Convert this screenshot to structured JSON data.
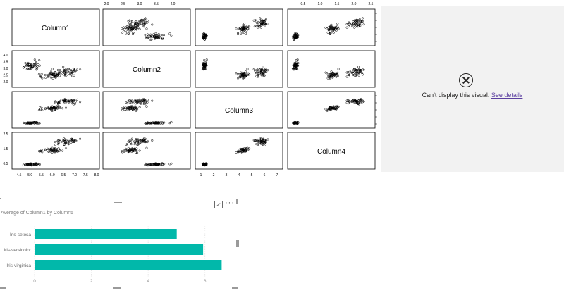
{
  "pairs_plot": {
    "variables": [
      "Column1",
      "Column2",
      "Column3",
      "Column4"
    ],
    "ranges": [
      [
        4.3,
        7.9
      ],
      [
        2.0,
        4.4
      ],
      [
        1.0,
        6.9
      ],
      [
        0.1,
        2.5
      ]
    ],
    "top_ticks_col2": [
      "2.0",
      "2.5",
      "3.0",
      "3.5",
      "4.0"
    ],
    "top_ticks_col4": [
      "0.5",
      "1.0",
      "1.5",
      "2.0",
      "2.5"
    ],
    "left_ticks_row2": [
      "4.0",
      "3.5",
      "3.0",
      "2.5",
      "2.0"
    ],
    "left_ticks_row4": [
      "2.5",
      "1.5",
      "0.5"
    ],
    "bottom_ticks_col1": [
      "4.5",
      "5.0",
      "5.5",
      "6.0",
      "6.5",
      "7.0",
      "7.5",
      "8.0"
    ],
    "bottom_ticks_col3": [
      "1",
      "2",
      "3",
      "4",
      "5",
      "6",
      "7"
    ]
  },
  "error_visual": {
    "message": "Can't display this visual.",
    "link": "See details",
    "icon": "close-circle-icon"
  },
  "bar_visual": {
    "title": "Average of Column1 by Column5",
    "header_icons": [
      "drag-handle-icon",
      "focus-mode-icon",
      "more-options-icon"
    ],
    "more_label": "···"
  },
  "chart_data": {
    "type": "bar",
    "orientation": "horizontal",
    "title": "Average of Column1 by Column5",
    "categories": [
      "Iris-setosa",
      "Iris-versicolor",
      "Iris-virginica"
    ],
    "values": [
      5.006,
      5.936,
      6.588
    ],
    "xlim": [
      0,
      7
    ],
    "xticks": [
      "0",
      "2",
      "4",
      "6"
    ],
    "bar_color": "#01b8aa",
    "grid": true
  }
}
